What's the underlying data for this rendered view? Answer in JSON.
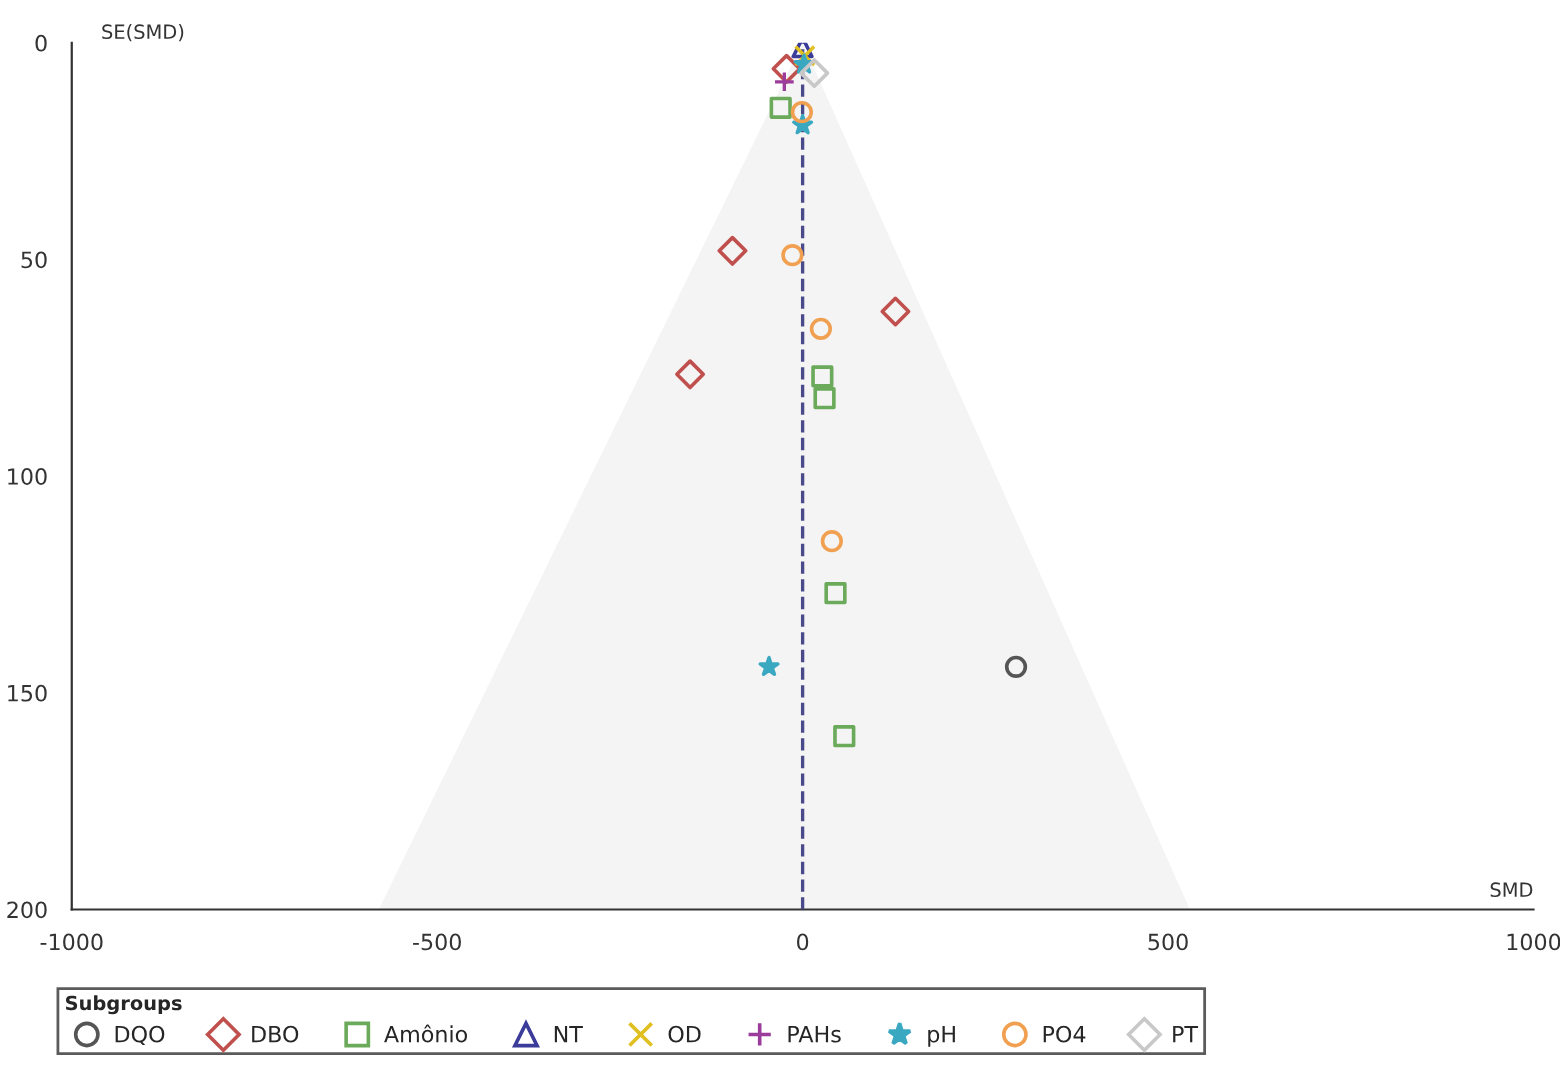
{
  "chart_data": {
    "type": "scatter",
    "xlabel": "SMD",
    "ylabel": "SE(SMD)",
    "legend_title": "Subgroups",
    "xlim": [
      -1000,
      1000
    ],
    "xticks": [
      -1000,
      -500,
      0,
      500,
      1000
    ],
    "ylim": [
      200,
      0
    ],
    "yticks": [
      0,
      50,
      100,
      150,
      200
    ],
    "grid": false,
    "legend": "bottom",
    "ref_lines": [
      {
        "axis": "x",
        "value": 0,
        "color": "#4a4a8a",
        "line_style": "dashed"
      }
    ],
    "series": [
      {
        "type": "area",
        "color": "#f4f4f4",
        "x": [
          -580,
          0,
          530
        ],
        "values": [
          200,
          0,
          200
        ]
      },
      {
        "name": "DQO",
        "color": "#555555",
        "marker": "circle",
        "x": [
          null,
          292
        ],
        "values": [
          null,
          144
        ]
      },
      {
        "name": "DBO",
        "color": "#c0504d",
        "marker": "diamond",
        "x": [
          -96,
          127,
          -154,
          -22
        ],
        "values": [
          48,
          62,
          76.5,
          6
        ]
      },
      {
        "name": "Amônio",
        "color": "#6aaa5a",
        "marker": "square",
        "x": [
          27,
          30,
          45,
          57,
          -30
        ],
        "values": [
          77,
          82,
          127,
          160,
          15
        ]
      },
      {
        "name": "NT",
        "color": "#3b3b9a",
        "marker": "triangle",
        "x": [
          0
        ],
        "values": [
          1
        ]
      },
      {
        "name": "OD",
        "color": "#e0c020",
        "marker": "cross",
        "x": [
          3
        ],
        "values": [
          3
        ]
      },
      {
        "name": "PAHs",
        "color": "#9b3b9b",
        "marker": "plus",
        "x": [
          -25
        ],
        "values": [
          9
        ]
      },
      {
        "name": "pH",
        "color": "#3aa8c0",
        "marker": "star",
        "x": [
          -46,
          0,
          2
        ],
        "values": [
          144,
          19,
          5
        ]
      },
      {
        "name": "PO4",
        "color": "#f0a050",
        "marker": "circle",
        "x": [
          -14,
          25,
          40,
          -1
        ],
        "values": [
          49,
          66,
          115,
          16
        ]
      },
      {
        "name": "PT",
        "color": "#c8c8c8",
        "marker": "diamond",
        "x": [
          16
        ],
        "values": [
          7
        ]
      }
    ]
  }
}
